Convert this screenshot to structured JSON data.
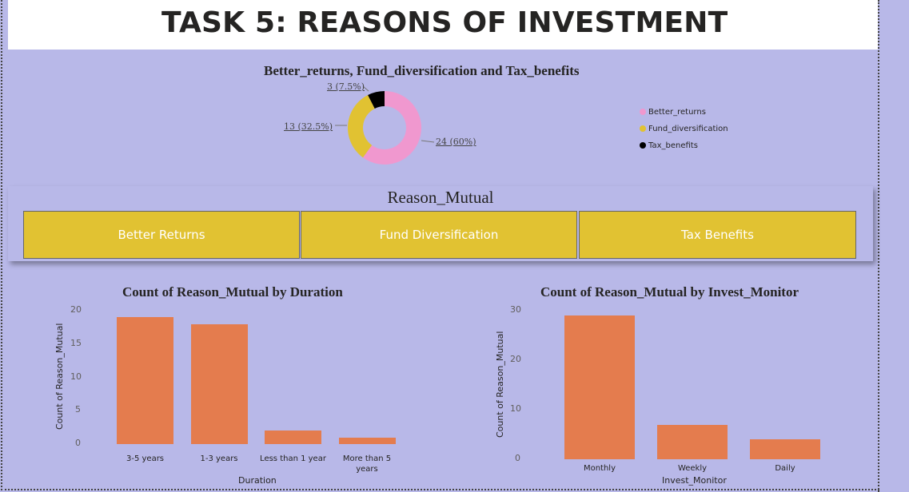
{
  "page": {
    "title": "TASK 5: REASONS OF INVESTMENT"
  },
  "colors": {
    "background": "#b8b8e8",
    "bar": "#e47c4e",
    "slicer": "#e1c232",
    "pink": "#f098cf",
    "gold": "#e1c232",
    "black": "#000000"
  },
  "slicer": {
    "title": "Reason_Mutual",
    "options": [
      "Better Returns",
      "Fund Diversification",
      "Tax Benefits"
    ]
  },
  "chart_data": [
    {
      "type": "pie",
      "title": "Better_returns, Fund_diversification and Tax_benefits",
      "categories": [
        "Better_returns",
        "Fund_diversification",
        "Tax_benefits"
      ],
      "values": [
        24,
        13,
        3
      ],
      "data_labels": [
        "24 (60%)",
        "13 (32.5%)",
        "3 (7.5%)"
      ],
      "colors": [
        "#f098cf",
        "#e1c232",
        "#000000"
      ],
      "legend": "right"
    },
    {
      "type": "bar",
      "title": "Count of Reason_Mutual by Duration",
      "categories": [
        "3-5 years",
        "1-3 years",
        "Less than 1 year",
        "More than 5 years"
      ],
      "values": [
        19,
        18,
        2,
        1
      ],
      "xlabel": "Duration",
      "ylabel": "Count of Reason_Mutual",
      "ylim": [
        0,
        20
      ],
      "yticks": [
        0,
        5,
        10,
        15,
        20
      ]
    },
    {
      "type": "bar",
      "title": "Count of Reason_Mutual by Invest_Monitor",
      "categories": [
        "Monthly",
        "Weekly",
        "Daily"
      ],
      "values": [
        29,
        7,
        4
      ],
      "xlabel": "Invest_Monitor",
      "ylabel": "Count of Reason_Mutual",
      "ylim": [
        0,
        30
      ],
      "yticks": [
        0,
        10,
        20,
        30
      ]
    }
  ]
}
